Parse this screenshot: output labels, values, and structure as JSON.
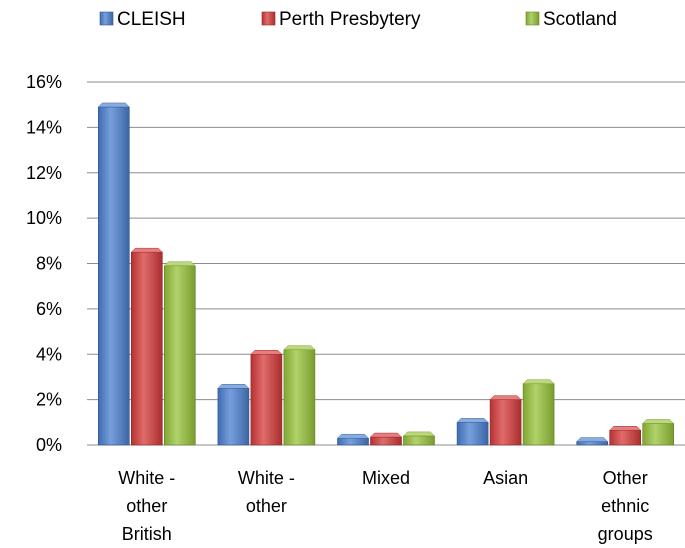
{
  "chart_data": {
    "type": "bar",
    "categories": [
      [
        "White -",
        "other",
        "British"
      ],
      [
        "White -",
        "other"
      ],
      [
        "Mixed"
      ],
      [
        "Asian"
      ],
      [
        "Other",
        "ethnic",
        "groups"
      ]
    ],
    "series": [
      {
        "name": "CLEISH",
        "color": "#4a7fd0",
        "values": [
          14.9,
          2.5,
          0.3,
          1.0,
          0.15
        ]
      },
      {
        "name": "Perth Presbytery",
        "color": "#d63a3a",
        "values": [
          8.5,
          4.0,
          0.35,
          2.0,
          0.65
        ]
      },
      {
        "name": "Scotland",
        "color": "#97c33a",
        "values": [
          7.9,
          4.2,
          0.4,
          2.7,
          0.95
        ]
      }
    ],
    "ylim": [
      0,
      16
    ],
    "yticks": [
      0,
      2,
      4,
      6,
      8,
      10,
      12,
      14,
      16
    ],
    "ytick_labels": [
      "0%",
      "2%",
      "4%",
      "6%",
      "8%",
      "10%",
      "12%",
      "14%",
      "16%"
    ],
    "grid": true,
    "legend_position": "top"
  }
}
